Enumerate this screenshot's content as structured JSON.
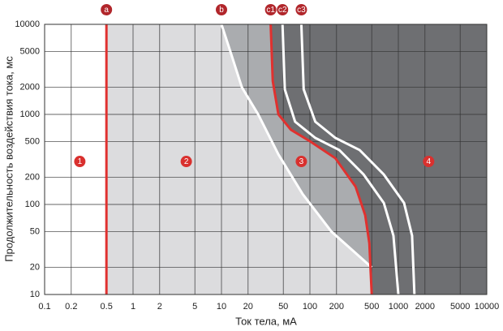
{
  "chart_data": {
    "type": "line",
    "x_label": "Ток тела, мА",
    "y_label": "Продолжительность воздействия тока, мс",
    "x_log": true,
    "y_log": true,
    "grid": true,
    "xlim": [
      0.1,
      10000
    ],
    "ylim": [
      10,
      10000
    ],
    "xticks": [
      0.1,
      0.2,
      0.5,
      1,
      2,
      5,
      10,
      20,
      50,
      100,
      200,
      500,
      1000,
      2000,
      5000,
      10000
    ],
    "yticks": [
      10,
      20,
      50,
      100,
      200,
      500,
      1000,
      2000,
      5000,
      10000
    ],
    "series": [
      {
        "name": "a",
        "color": "#e0312f",
        "fill": "#dcdcde",
        "x": [
          0.5,
          0.5
        ],
        "values": [
          10000,
          10
        ]
      },
      {
        "name": "b",
        "color": "#ffffff",
        "fill": "#aaacaf",
        "x": [
          10,
          12.6,
          17,
          26,
          44,
          83,
          175,
          500
        ],
        "values": [
          10000,
          5000,
          2000,
          1000,
          360,
          130,
          50,
          20
        ]
      },
      {
        "name": "c1",
        "color": "#e0312f",
        "fill": "#6e6f72",
        "x": [
          36,
          38,
          44,
          61,
          103,
          194,
          328,
          422,
          470,
          500
        ],
        "values": [
          10000,
          2340,
          1000,
          675,
          494,
          326,
          158,
          76,
          37,
          10
        ]
      },
      {
        "name": "c2",
        "color": "#ffffff",
        "x": [
          49,
          52,
          68,
          115,
          215,
          405,
          685,
          880,
          1000
        ],
        "values": [
          10000,
          1900,
          830,
          548,
          402,
          215,
          104,
          45,
          10
        ]
      },
      {
        "name": "c3",
        "color": "#ffffff",
        "x": [
          80,
          85,
          115,
          194,
          365,
          685,
          1160,
          1430,
          1520
        ],
        "values": [
          10000,
          1900,
          830,
          548,
          402,
          215,
          104,
          45,
          10
        ]
      }
    ],
    "zones": [
      {
        "label": "1",
        "x": 0.25,
        "y": 300
      },
      {
        "label": "2",
        "x": 4,
        "y": 300
      },
      {
        "label": "3",
        "x": 80,
        "y": 300
      },
      {
        "label": "4",
        "x": 2200,
        "y": 300
      }
    ],
    "marker_color": "#b1262b"
  }
}
